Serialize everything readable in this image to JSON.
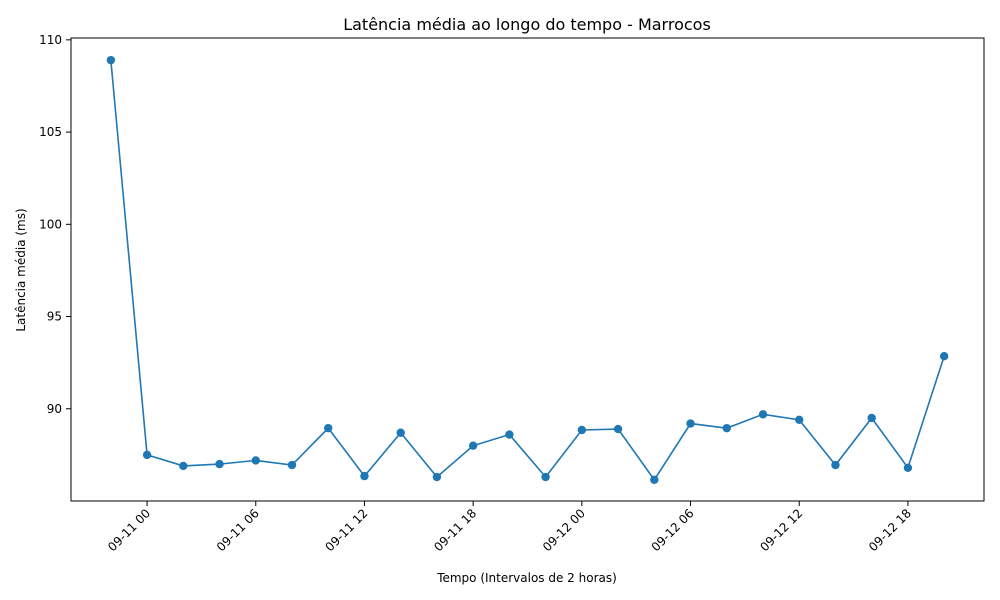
{
  "chart_data": {
    "type": "line",
    "title": "Latência média ao longo do tempo - Marrocos",
    "xlabel": "Tempo (Intervalos de 2 horas)",
    "ylabel": "Latência média (ms)",
    "x_tick_labels": [
      "09-11 00",
      "09-11 06",
      "09-11 12",
      "09-11 18",
      "09-12 00",
      "09-12 06",
      "09-12 12",
      "09-12 18"
    ],
    "x_tick_hours": [
      0,
      6,
      12,
      18,
      24,
      30,
      36,
      42
    ],
    "xlim_hours": [
      -4.2,
      46.2
    ],
    "y_ticks": [
      90,
      95,
      100,
      105,
      110
    ],
    "ylim": [
      85.0,
      110.1
    ],
    "grid": false,
    "line_color": "#1f77b4",
    "series": [
      {
        "x_hours": [
          -2,
          0,
          2,
          4,
          6,
          8,
          10,
          12,
          14,
          16,
          18,
          20,
          22,
          24,
          26,
          28,
          30,
          32,
          34,
          36,
          38,
          40,
          42,
          44
        ],
        "values": [
          108.9,
          87.5,
          86.9,
          87.0,
          87.2,
          86.95,
          88.95,
          86.35,
          88.7,
          86.3,
          88.0,
          88.6,
          86.3,
          88.85,
          88.9,
          86.15,
          89.2,
          88.95,
          89.7,
          89.4,
          86.95,
          89.5,
          86.8,
          92.85
        ]
      }
    ]
  }
}
